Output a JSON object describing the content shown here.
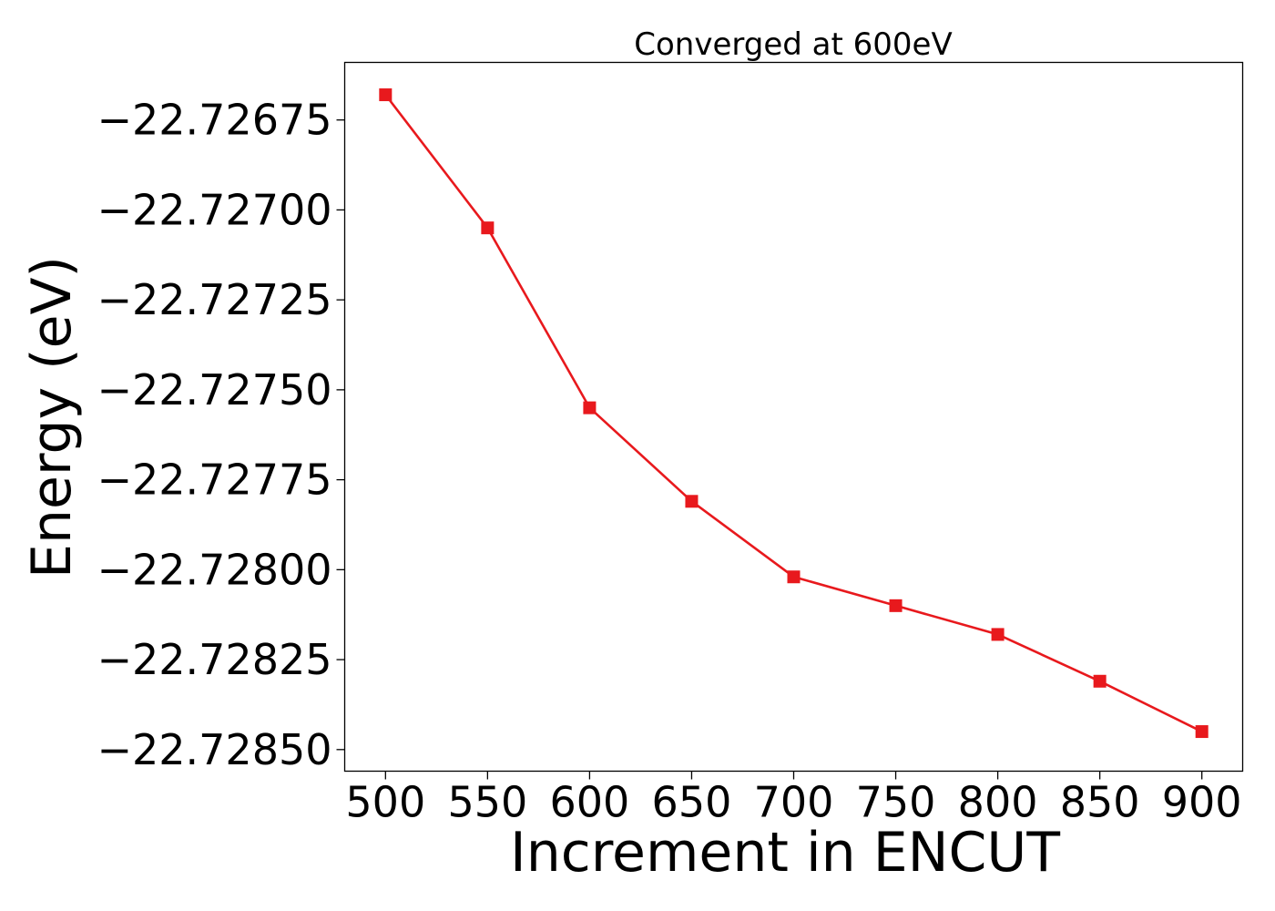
{
  "chart_data": {
    "type": "line",
    "title": "Converged at 600eV",
    "xlabel": "Increment in ENCUT",
    "ylabel": "Energy (eV)",
    "x": [
      500,
      550,
      600,
      650,
      700,
      750,
      800,
      850,
      900
    ],
    "xlim": [
      480,
      920
    ],
    "xticks": [
      500,
      550,
      600,
      650,
      700,
      750,
      800,
      850,
      900
    ],
    "ylim": [
      -22.72856,
      -22.72659
    ],
    "yticks": [
      -22.72675,
      -22.727,
      -22.72725,
      -22.7275,
      -22.72775,
      -22.728,
      -22.72825,
      -22.7285
    ],
    "ytick_labels": [
      "−22.72675",
      "−22.72700",
      "−22.72725",
      "−22.72750",
      "−22.72775",
      "−22.72800",
      "−22.72825",
      "−22.72850"
    ],
    "series": [
      {
        "values": [
          -22.72668,
          -22.72705,
          -22.72755,
          -22.72781,
          -22.72802,
          -22.7281,
          -22.72818,
          -22.72831,
          -22.72845
        ],
        "color": "#e8191d",
        "marker": "square"
      }
    ],
    "grid": false,
    "legend": "none"
  }
}
